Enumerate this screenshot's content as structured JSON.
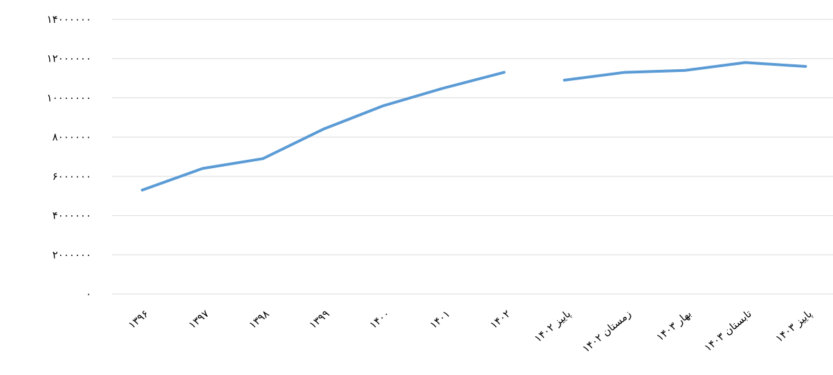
{
  "chart_data": {
    "type": "line",
    "categories": [
      "۱۳۹۶",
      "۱۳۹۷",
      "۱۳۹۸",
      "۱۳۹۹",
      "۱۴۰۰",
      "۱۴۰۱",
      "۱۴۰۲",
      "پاییز ۱۴۰۲",
      "زمستان ۱۴۰۲",
      "بهار ۱۴۰۳",
      "تابستان ۱۴۰۳",
      "پاییز ۱۴۰۳"
    ],
    "series": [
      {
        "color": "#5b9bd5",
        "values": [
          5300000,
          6400000,
          6900000,
          8400000,
          9600000,
          10500000,
          11300000,
          null,
          null,
          null,
          null,
          null
        ]
      },
      {
        "color": "#5b9bd5",
        "values": [
          null,
          null,
          null,
          null,
          null,
          null,
          null,
          10900000,
          11300000,
          11400000,
          11800000,
          11600000
        ]
      }
    ],
    "ylim": [
      0,
      14000000
    ],
    "yticks": [
      {
        "value": 0,
        "label": "۰"
      },
      {
        "value": 2000000,
        "label": "۲۰۰۰۰۰۰"
      },
      {
        "value": 4000000,
        "label": "۴۰۰۰۰۰۰"
      },
      {
        "value": 6000000,
        "label": "۶۰۰۰۰۰۰"
      },
      {
        "value": 8000000,
        "label": "۸۰۰۰۰۰۰"
      },
      {
        "value": 10000000,
        "label": "۱۰۰۰۰۰۰۰"
      },
      {
        "value": 12000000,
        "label": "۱۲۰۰۰۰۰۰"
      },
      {
        "value": 14000000,
        "label": "۱۴۰۰۰۰۰۰"
      }
    ],
    "grid": true
  }
}
